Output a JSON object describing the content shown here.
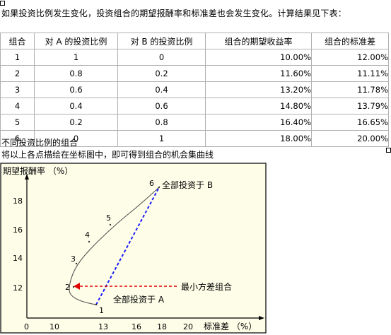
{
  "intro_text": "如果投资比例发生变化，投资组合的期望报酬率和标准差也会发生变化。计算结果见下表：",
  "table": {
    "headers": [
      "组合",
      "对 A 的投资比例",
      "对 B 的投资比例",
      "组合的期望收益率",
      "组合的标准差"
    ],
    "rows": [
      [
        "1",
        "1",
        "0",
        "10.00%",
        "12.00%"
      ],
      [
        "2",
        "0.8",
        "0.2",
        "11.60%",
        "11.11%"
      ],
      [
        "3",
        "0.6",
        "0.4",
        "13.20%",
        "11.78%"
      ],
      [
        "4",
        "0.4",
        "0.6",
        "14.80%",
        "13.79%"
      ],
      [
        "5",
        "0.2",
        "0.8",
        "16.40%",
        "16.65%"
      ],
      [
        "6",
        "0",
        "1",
        "18.00%",
        "20.00%"
      ]
    ]
  },
  "table_caption": "不同投资比例的组合",
  "chart_intro": "将以上各点描绘在坐标图中，即可得到组合的机会集曲线",
  "chart_data": {
    "type": "line",
    "ylabel": "期望报酬率 （%）",
    "xlabel": "标准差 （%）",
    "x_ticks": [
      "0",
      "10",
      "13",
      "16",
      "18",
      "20"
    ],
    "y_ticks": [
      "12",
      "14",
      "16",
      "18"
    ],
    "points": [
      {
        "label": "1",
        "x": 12.0,
        "y": 10.0
      },
      {
        "label": "2",
        "x": 11.11,
        "y": 11.6
      },
      {
        "label": "3",
        "x": 11.78,
        "y": 13.2
      },
      {
        "label": "4",
        "x": 13.79,
        "y": 14.8
      },
      {
        "label": "5",
        "x": 16.65,
        "y": 16.4
      },
      {
        "label": "6",
        "x": 20.0,
        "y": 18.0
      }
    ],
    "annotations": {
      "all_in_b": "全部投资于 B",
      "all_in_a": "全部投资于 A",
      "min_variance": "最小方差组合"
    },
    "colors": {
      "background": "#fdfde8",
      "curve": "#555555",
      "dashed_line": "#1a1aff",
      "arrow": "#e00000"
    }
  }
}
